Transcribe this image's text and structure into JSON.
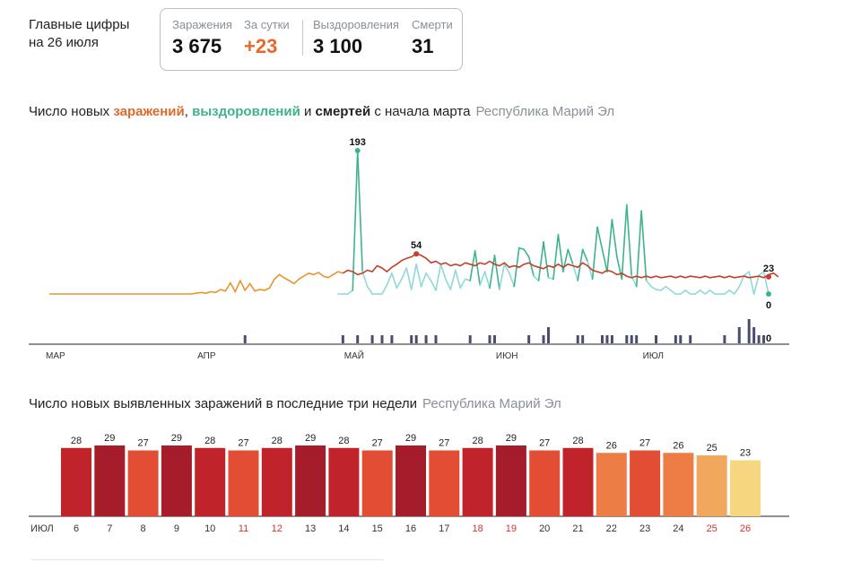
{
  "header": {
    "title_line1": "Главные цифры",
    "title_line2": "на 26 июля"
  },
  "stats": [
    {
      "label": "Заражения",
      "value": "3 675",
      "color": "#111111"
    },
    {
      "label": "За сутки",
      "value": "+23",
      "color": "#e8682a"
    },
    {
      "label": "Выздоровления",
      "value": "3 100",
      "color": "#111111"
    },
    {
      "label": "Смерти",
      "value": "31",
      "color": "#111111"
    }
  ],
  "trend": {
    "title_pre": "Число новых ",
    "title_infections": "заражений",
    "title_sep1": ", ",
    "title_recoveries": "выздоровлений",
    "title_sep2": " и ",
    "title_deaths": "смертей",
    "title_post": " с начала марта",
    "region": "Республика Марий Эл"
  },
  "weekly": {
    "title": "Число новых выявленных заражений в последние три недели",
    "region": "Республика Марий Эл"
  },
  "chart_data": [
    {
      "type": "line",
      "x_ticks": [
        "МАР",
        "АПР",
        "МАЙ",
        "ИЮН",
        "ИЮЛ"
      ],
      "days_total": 148,
      "annotations": [
        {
          "series": "recoveries",
          "day": 63,
          "value": 193,
          "label": "193"
        },
        {
          "series": "infections",
          "day": 75,
          "value": 54,
          "label": "54"
        },
        {
          "series": "infections",
          "day": 147,
          "value": 23,
          "label": "23"
        },
        {
          "series": "recoveries",
          "day": 147,
          "value": 0,
          "label": "0"
        },
        {
          "series": "deaths",
          "day": 147,
          "value": 0,
          "label": "0"
        }
      ],
      "series": [
        {
          "key": "infections",
          "color": "#c0402a",
          "color_early": "#e8952e",
          "values": [
            0,
            0,
            0,
            0,
            0,
            0,
            0,
            0,
            0,
            0,
            0,
            0,
            0,
            0,
            0,
            0,
            0,
            0,
            0,
            0,
            0,
            0,
            0,
            0,
            0,
            0,
            0,
            0,
            0,
            0,
            1,
            2,
            1,
            3,
            2,
            6,
            4,
            15,
            3,
            18,
            5,
            14,
            4,
            6,
            5,
            8,
            20,
            26,
            22,
            18,
            14,
            20,
            24,
            28,
            26,
            29,
            24,
            22,
            26,
            30,
            28,
            32,
            30,
            26,
            28,
            32,
            30,
            38,
            35,
            30,
            36,
            40,
            45,
            48,
            50,
            54,
            52,
            48,
            42,
            44,
            40,
            42,
            38,
            40,
            38,
            42,
            40,
            38,
            42,
            40,
            44,
            40,
            38,
            42,
            36,
            38,
            36,
            40,
            42,
            38,
            36,
            34,
            38,
            36,
            40,
            36,
            40,
            38,
            36,
            42,
            38,
            32,
            30,
            28,
            32,
            30,
            26,
            28,
            24,
            22,
            24,
            22,
            24,
            22,
            24,
            22,
            23,
            24,
            22,
            24,
            22,
            24,
            23,
            22,
            24,
            22,
            23,
            24,
            22,
            24,
            22,
            23,
            24,
            22,
            23,
            24,
            22,
            26,
            28,
            23
          ]
        },
        {
          "key": "recoveries",
          "color": "#3db38d",
          "color_light": "#8fd8dc",
          "values": [
            0,
            0,
            0,
            0,
            0,
            0,
            0,
            0,
            0,
            0,
            0,
            0,
            0,
            0,
            0,
            0,
            0,
            0,
            0,
            0,
            0,
            0,
            0,
            0,
            0,
            0,
            0,
            0,
            0,
            0,
            0,
            0,
            0,
            0,
            0,
            0,
            0,
            0,
            0,
            0,
            0,
            0,
            0,
            0,
            0,
            0,
            0,
            0,
            0,
            0,
            0,
            0,
            0,
            0,
            0,
            0,
            0,
            0,
            0,
            0,
            0,
            0,
            5,
            193,
            30,
            10,
            0,
            0,
            0,
            12,
            28,
            8,
            20,
            35,
            6,
            40,
            10,
            28,
            18,
            5,
            40,
            20,
            6,
            32,
            8,
            20,
            18,
            58,
            12,
            30,
            8,
            52,
            6,
            40,
            28,
            10,
            62,
            60,
            50,
            24,
            18,
            70,
            22,
            20,
            80,
            30,
            60,
            40,
            18,
            60,
            44,
            20,
            90,
            60,
            30,
            100,
            50,
            20,
            120,
            24,
            10,
            112,
            18,
            10,
            6,
            5,
            10,
            5,
            0,
            0,
            5,
            0,
            0,
            5,
            0,
            5,
            0,
            0,
            0,
            5,
            0,
            10,
            25,
            30,
            0,
            25,
            30,
            0
          ]
        },
        {
          "key": "deaths",
          "color": "#4a4e6e",
          "values": [
            0,
            0,
            0,
            0,
            0,
            0,
            0,
            0,
            0,
            0,
            0,
            0,
            0,
            0,
            0,
            0,
            0,
            0,
            0,
            0,
            0,
            0,
            0,
            0,
            0,
            0,
            0,
            0,
            0,
            0,
            0,
            0,
            0,
            0,
            0,
            0,
            0,
            0,
            0,
            0,
            1,
            0,
            0,
            0,
            0,
            0,
            0,
            0,
            0,
            0,
            0,
            0,
            0,
            0,
            0,
            0,
            0,
            0,
            0,
            0,
            1,
            0,
            0,
            1,
            0,
            0,
            1,
            0,
            1,
            0,
            1,
            0,
            0,
            0,
            1,
            1,
            0,
            1,
            0,
            1,
            0,
            0,
            0,
            0,
            0,
            0,
            1,
            0,
            0,
            0,
            1,
            1,
            0,
            0,
            0,
            0,
            0,
            0,
            1,
            0,
            0,
            1,
            2,
            0,
            0,
            0,
            0,
            0,
            1,
            1,
            0,
            0,
            0,
            1,
            1,
            1,
            0,
            0,
            1,
            1,
            1,
            0,
            0,
            0,
            1,
            0,
            0,
            0,
            1,
            1,
            0,
            1,
            0,
            0,
            0,
            0,
            0,
            0,
            1,
            0,
            0,
            2,
            0,
            3,
            2,
            1,
            1,
            0
          ]
        }
      ]
    },
    {
      "type": "bar",
      "x_label": "ИЮЛ",
      "categories": [
        "6",
        "7",
        "8",
        "9",
        "10",
        "11",
        "12",
        "13",
        "14",
        "15",
        "16",
        "17",
        "18",
        "19",
        "20",
        "21",
        "22",
        "23",
        "24",
        "25",
        "26"
      ],
      "values": [
        28,
        29,
        27,
        29,
        28,
        27,
        28,
        29,
        28,
        27,
        29,
        27,
        28,
        29,
        27,
        28,
        26,
        27,
        26,
        25,
        23
      ],
      "colors": [
        "#c0242a",
        "#a51d2b",
        "#e24e33",
        "#a51d2b",
        "#c0242a",
        "#e24e33",
        "#c0242a",
        "#a51d2b",
        "#c0242a",
        "#e24e33",
        "#a51d2b",
        "#e24e33",
        "#c0242a",
        "#a51d2b",
        "#e24e33",
        "#c0242a",
        "#ee7c45",
        "#e24e33",
        "#ee7c45",
        "#f2a85c",
        "#f6d67e"
      ],
      "weekend_categories": [
        "11",
        "12",
        "18",
        "19",
        "25",
        "26"
      ],
      "weekend_color": "#d0342c"
    }
  ]
}
